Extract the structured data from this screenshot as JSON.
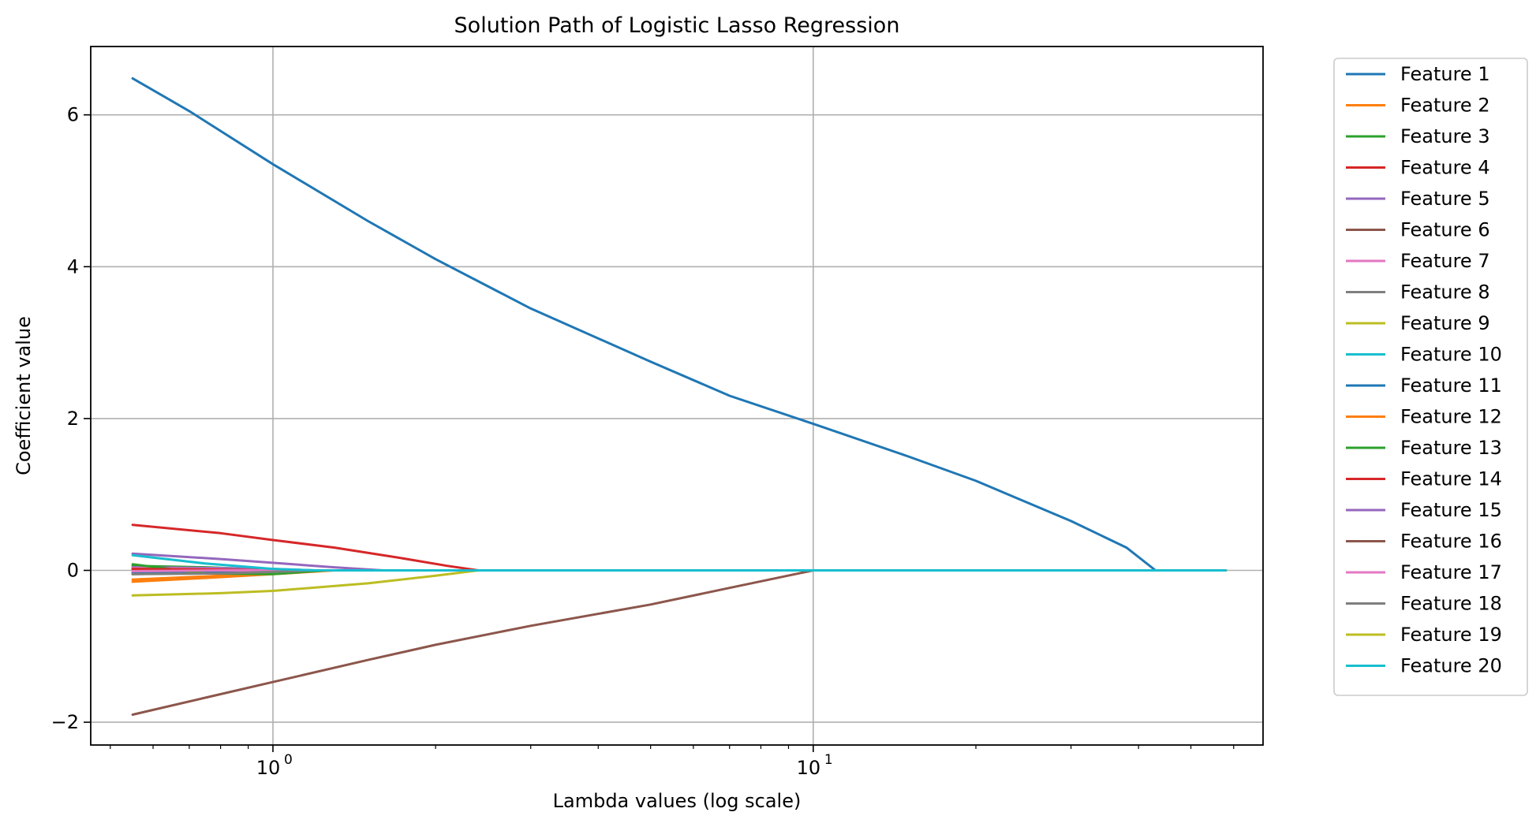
{
  "chart_data": {
    "type": "line",
    "title": "Solution Path of Logistic Lasso Regression",
    "xlabel": "Lambda values (log scale)",
    "ylabel": "Coefficient value",
    "x_scale": "log",
    "xlim": [
      0.46,
      68
    ],
    "ylim": [
      -2.3,
      6.9
    ],
    "grid": true,
    "legend_position": "outside-right",
    "x_ticks": [
      {
        "value": 1,
        "base": "10",
        "exp": "0"
      },
      {
        "value": 10,
        "base": "10",
        "exp": "1"
      }
    ],
    "y_ticks": [
      {
        "value": -2,
        "label": "−2"
      },
      {
        "value": 0,
        "label": "0"
      },
      {
        "value": 2,
        "label": "2"
      },
      {
        "value": 4,
        "label": "4"
      },
      {
        "value": 6,
        "label": "6"
      }
    ],
    "series": [
      {
        "name": "Feature 1",
        "color": "#1f77b4",
        "points": [
          [
            0.55,
            6.48
          ],
          [
            0.7,
            6.05
          ],
          [
            1,
            5.35
          ],
          [
            1.5,
            4.6
          ],
          [
            2,
            4.1
          ],
          [
            3,
            3.45
          ],
          [
            5,
            2.75
          ],
          [
            7,
            2.3
          ],
          [
            10,
            1.93
          ],
          [
            15,
            1.5
          ],
          [
            20,
            1.18
          ],
          [
            30,
            0.65
          ],
          [
            38,
            0.3
          ],
          [
            43,
            0.0
          ],
          [
            58,
            0.0
          ]
        ]
      },
      {
        "name": "Feature 2",
        "color": "#ff7f0e",
        "points": [
          [
            0.55,
            -0.12
          ],
          [
            0.75,
            -0.08
          ],
          [
            1,
            -0.03
          ],
          [
            1.2,
            0.0
          ],
          [
            58,
            0.0
          ]
        ]
      },
      {
        "name": "Feature 3",
        "color": "#2ca02c",
        "points": [
          [
            0.55,
            0.06
          ],
          [
            0.75,
            0.04
          ],
          [
            1,
            0.01
          ],
          [
            1.1,
            0.0
          ],
          [
            58,
            0.0
          ]
        ]
      },
      {
        "name": "Feature 4",
        "color": "#d62728",
        "points": [
          [
            0.55,
            0.6
          ],
          [
            0.8,
            0.49
          ],
          [
            1,
            0.4
          ],
          [
            1.3,
            0.3
          ],
          [
            1.7,
            0.17
          ],
          [
            2.1,
            0.06
          ],
          [
            2.4,
            0.0
          ],
          [
            58,
            0.0
          ]
        ]
      },
      {
        "name": "Feature 5",
        "color": "#9467bd",
        "points": [
          [
            0.55,
            0.04
          ],
          [
            0.8,
            0.03
          ],
          [
            1,
            0.02
          ],
          [
            1.2,
            0.0
          ],
          [
            58,
            0.0
          ]
        ]
      },
      {
        "name": "Feature 6",
        "color": "#8c564b",
        "points": [
          [
            0.55,
            -0.05
          ],
          [
            0.8,
            -0.03
          ],
          [
            1,
            -0.02
          ],
          [
            1.1,
            0.0
          ],
          [
            58,
            0.0
          ]
        ]
      },
      {
        "name": "Feature 7",
        "color": "#e377c2",
        "points": [
          [
            0.55,
            0.03
          ],
          [
            0.8,
            0.02
          ],
          [
            1,
            0.0
          ],
          [
            58,
            0.0
          ]
        ]
      },
      {
        "name": "Feature 8",
        "color": "#7f7f7f",
        "points": [
          [
            0.55,
            0.02
          ],
          [
            0.8,
            0.01
          ],
          [
            1,
            0.0
          ],
          [
            58,
            0.0
          ]
        ]
      },
      {
        "name": "Feature 9",
        "color": "#bcbd22",
        "points": [
          [
            0.55,
            -0.02
          ],
          [
            0.8,
            -0.01
          ],
          [
            1,
            0.0
          ],
          [
            58,
            0.0
          ]
        ]
      },
      {
        "name": "Feature 10",
        "color": "#17becf",
        "points": [
          [
            0.55,
            0.01
          ],
          [
            0.8,
            0.01
          ],
          [
            1,
            0.0
          ],
          [
            58,
            0.0
          ]
        ]
      },
      {
        "name": "Feature 11",
        "color": "#1f77b4",
        "points": [
          [
            0.55,
            -0.03
          ],
          [
            0.8,
            -0.02
          ],
          [
            1,
            0.0
          ],
          [
            58,
            0.0
          ]
        ]
      },
      {
        "name": "Feature 12",
        "color": "#ff7f0e",
        "points": [
          [
            0.55,
            -0.15
          ],
          [
            0.75,
            -0.1
          ],
          [
            1,
            -0.05
          ],
          [
            1.3,
            0.0
          ],
          [
            58,
            0.0
          ]
        ]
      },
      {
        "name": "Feature 13",
        "color": "#2ca02c",
        "points": [
          [
            0.55,
            0.08
          ],
          [
            0.75,
            -0.04
          ],
          [
            1,
            -0.05
          ],
          [
            1.25,
            0.0
          ],
          [
            58,
            0.0
          ]
        ]
      },
      {
        "name": "Feature 14",
        "color": "#d62728",
        "points": [
          [
            0.55,
            0.02
          ],
          [
            0.8,
            0.01
          ],
          [
            1,
            0.0
          ],
          [
            58,
            0.0
          ]
        ]
      },
      {
        "name": "Feature 15",
        "color": "#9467bd",
        "points": [
          [
            0.55,
            0.22
          ],
          [
            0.8,
            0.15
          ],
          [
            1,
            0.1
          ],
          [
            1.3,
            0.04
          ],
          [
            1.6,
            0.0
          ],
          [
            58,
            0.0
          ]
        ]
      },
      {
        "name": "Feature 16",
        "color": "#8c564b",
        "points": [
          [
            0.55,
            -1.9
          ],
          [
            0.8,
            -1.63
          ],
          [
            1,
            -1.47
          ],
          [
            1.5,
            -1.18
          ],
          [
            2,
            -0.98
          ],
          [
            3,
            -0.73
          ],
          [
            5,
            -0.45
          ],
          [
            7,
            -0.23
          ],
          [
            10,
            0.0
          ],
          [
            58,
            0.0
          ]
        ]
      },
      {
        "name": "Feature 17",
        "color": "#e377c2",
        "points": [
          [
            0.55,
            -0.01
          ],
          [
            0.8,
            0.0
          ],
          [
            58,
            0.0
          ]
        ]
      },
      {
        "name": "Feature 18",
        "color": "#7f7f7f",
        "points": [
          [
            0.55,
            -0.05
          ],
          [
            0.8,
            -0.04
          ],
          [
            1,
            -0.02
          ],
          [
            1.2,
            0.0
          ],
          [
            58,
            0.0
          ]
        ]
      },
      {
        "name": "Feature 19",
        "color": "#bcbd22",
        "points": [
          [
            0.55,
            -0.33
          ],
          [
            0.8,
            -0.3
          ],
          [
            1,
            -0.27
          ],
          [
            1.5,
            -0.17
          ],
          [
            2,
            -0.07
          ],
          [
            2.4,
            0.0
          ],
          [
            58,
            0.0
          ]
        ]
      },
      {
        "name": "Feature 20",
        "color": "#17becf",
        "points": [
          [
            0.55,
            0.2
          ],
          [
            0.75,
            0.09
          ],
          [
            1,
            0.02
          ],
          [
            1.2,
            0.0
          ],
          [
            58,
            0.0
          ]
        ]
      }
    ]
  }
}
